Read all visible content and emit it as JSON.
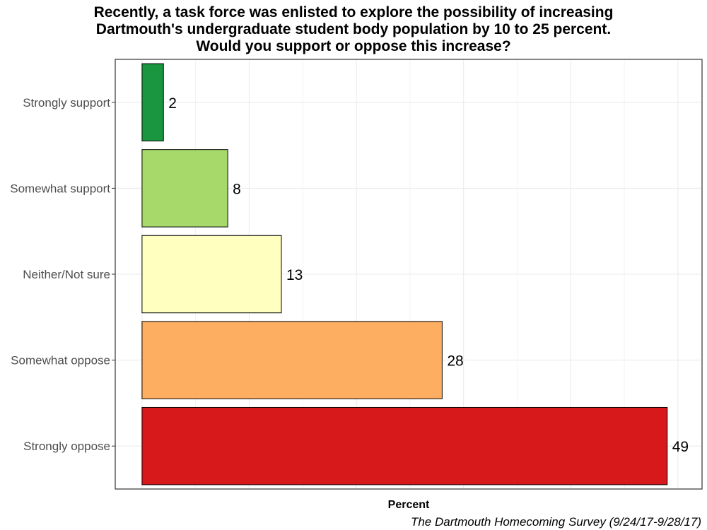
{
  "chart_data": {
    "type": "bar",
    "orientation": "horizontal",
    "title_lines": [
      "Recently, a task force was enlisted to explore the possibility of increasing",
      "Dartmouth's undergraduate student body population by 10 to 25 percent.",
      "Would you support or oppose this increase?"
    ],
    "categories": [
      "Strongly support",
      "Somewhat support",
      "Neither/Not sure",
      "Somewhat oppose",
      "Strongly oppose"
    ],
    "values": [
      2,
      8,
      13,
      28,
      49
    ],
    "data_labels": [
      "2",
      "8",
      "13",
      "28",
      "49"
    ],
    "colors": [
      "#1a9641",
      "#a6d96a",
      "#ffffbf",
      "#fdae61",
      "#d7191c"
    ],
    "xlabel": "Percent",
    "xlim": [
      -2.5,
      52.25
    ],
    "caption": "The Dartmouth Homecoming Survey (9/24/17-9/28/17)",
    "grid": true,
    "x_tick_labels_shown": false,
    "legend": "none"
  }
}
